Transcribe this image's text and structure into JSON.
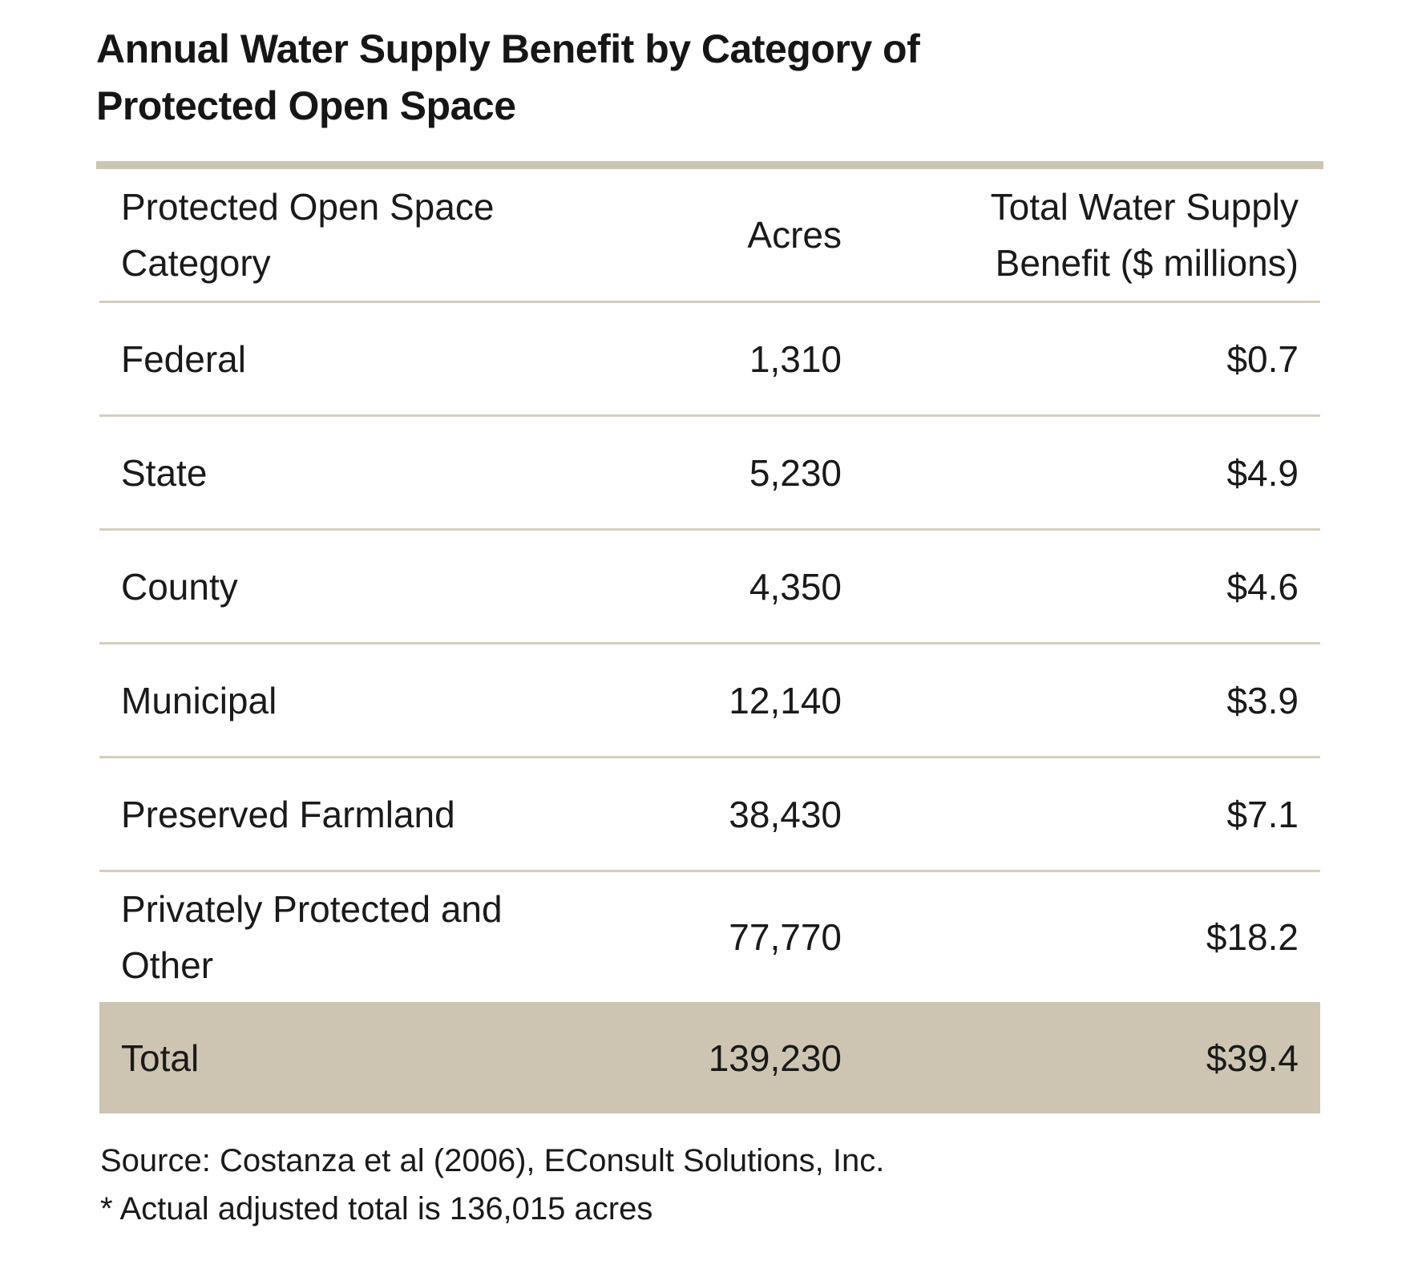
{
  "title": {
    "line1": "Annual Water Supply Benefit by Category of",
    "line2": "Protected Open Space"
  },
  "table": {
    "headers": {
      "category": "Protected Open Space Category",
      "acres": "Acres",
      "benefit": "Total Water Supply Benefit ($ millions)"
    },
    "rows": [
      {
        "category": "Federal",
        "acres": "1,310",
        "benefit": "$0.7"
      },
      {
        "category": "State",
        "acres": "5,230",
        "benefit": "$4.9"
      },
      {
        "category": "County",
        "acres": "4,350",
        "benefit": "$4.6"
      },
      {
        "category": "Municipal",
        "acres": "12,140",
        "benefit": "$3.9"
      },
      {
        "category": "Preserved Farmland",
        "acres": "38,430",
        "benefit": "$7.1"
      },
      {
        "category": "Privately Protected and Other",
        "acres": "77,770",
        "benefit": "$18.2"
      }
    ],
    "total": {
      "category": "Total",
      "acres": "139,230",
      "benefit": "$39.4"
    }
  },
  "footnotes": {
    "source": "Source: Costanza et al (2006), EConsult Solutions, Inc.",
    "note": "* Actual adjusted total is 136,015 acres"
  },
  "colors": {
    "accent": "#cdc5b2",
    "rule": "#d6cfbf",
    "text": "#1a1a1a"
  }
}
